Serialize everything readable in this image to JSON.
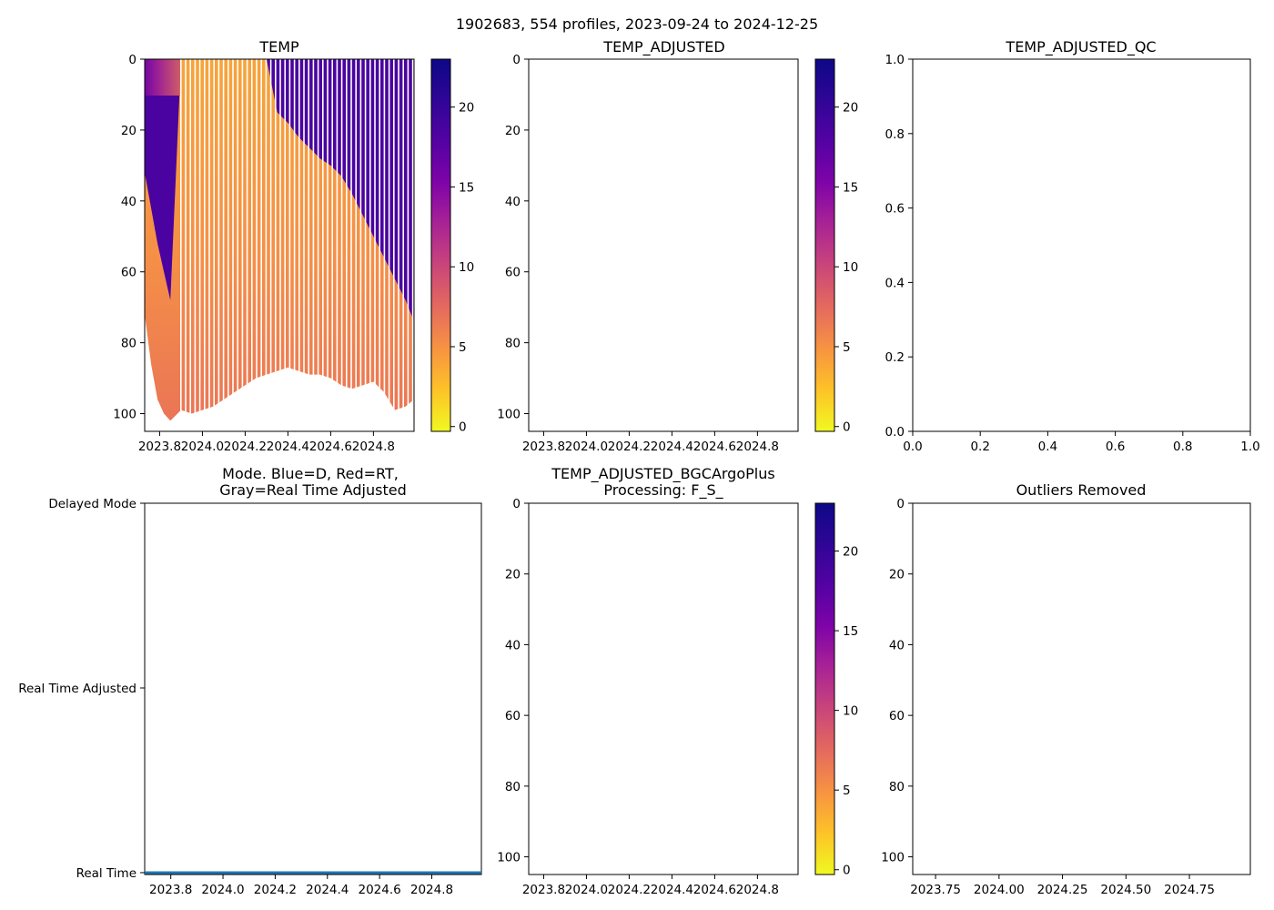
{
  "figure": {
    "suptitle": "1902683, 554 profiles, 2023-09-24 to 2024-12-25"
  },
  "chart_data": [
    {
      "id": "temp",
      "type": "heatmap",
      "title": "TEMP",
      "x_ticks": [
        "2023.8",
        "2024.0",
        "2024.2",
        "2024.4",
        "2024.6",
        "2024.8"
      ],
      "x_tick_values": [
        2023.8,
        2024.0,
        2024.2,
        2024.4,
        2024.6,
        2024.8
      ],
      "xlim": [
        2023.73,
        2024.99
      ],
      "y_ticks": [
        "0",
        "20",
        "40",
        "60",
        "80",
        "100"
      ],
      "y_tick_values": [
        0,
        20,
        40,
        60,
        80,
        100
      ],
      "ylim": [
        105,
        0
      ],
      "colorbar": {
        "cmap": "plasma_r",
        "range": [
          -0.3,
          23
        ],
        "ticks": [
          "0",
          "5",
          "10",
          "15",
          "20"
        ],
        "tick_values": [
          0,
          5,
          10,
          15,
          20
        ]
      },
      "bottom_depth_profile": {
        "x": [
          2023.73,
          2023.76,
          2023.79,
          2023.82,
          2023.85,
          2023.9,
          2023.95,
          2024.0,
          2024.05,
          2024.1,
          2024.15,
          2024.2,
          2024.25,
          2024.3,
          2024.35,
          2024.4,
          2024.45,
          2024.5,
          2024.55,
          2024.6,
          2024.65,
          2024.7,
          2024.75,
          2024.8,
          2024.85,
          2024.9,
          2024.95,
          2024.99
        ],
        "depth": [
          72,
          86,
          96,
          100,
          102,
          99,
          100,
          99,
          98,
          96,
          94,
          92,
          90,
          89,
          88,
          87,
          88,
          89,
          89,
          90,
          92,
          93,
          92,
          91,
          94,
          99,
          98,
          96
        ]
      },
      "mixed_layer_depth_profile": {
        "x": [
          2023.73,
          2023.76,
          2023.79,
          2023.82,
          2023.85,
          2023.9,
          2024.0,
          2024.1,
          2024.2,
          2024.3,
          2024.35,
          2024.4,
          2024.45,
          2024.5,
          2024.55,
          2024.6,
          2024.65,
          2024.7,
          2024.75,
          2024.8,
          2024.85,
          2024.9,
          2024.95,
          2024.99
        ],
        "depth": [
          32,
          42,
          52,
          60,
          68,
          100,
          100,
          100,
          100,
          100,
          15,
          18,
          22,
          25,
          28,
          30,
          33,
          38,
          44,
          50,
          56,
          62,
          68,
          74
        ]
      }
    },
    {
      "id": "temp-adjusted",
      "type": "heatmap",
      "title": "TEMP_ADJUSTED",
      "x_ticks": [
        "2023.8",
        "2024.0",
        "2024.2",
        "2024.4",
        "2024.6",
        "2024.8"
      ],
      "x_tick_values": [
        2023.8,
        2024.0,
        2024.2,
        2024.4,
        2024.6,
        2024.8
      ],
      "xlim": [
        2023.73,
        2024.99
      ],
      "y_ticks": [
        "0",
        "20",
        "40",
        "60",
        "80",
        "100"
      ],
      "y_tick_values": [
        0,
        20,
        40,
        60,
        80,
        100
      ],
      "ylim": [
        105,
        0
      ],
      "colorbar": {
        "cmap": "plasma_r",
        "range": [
          -0.3,
          23
        ],
        "ticks": [
          "0",
          "5",
          "10",
          "15",
          "20"
        ],
        "tick_values": [
          0,
          5,
          10,
          15,
          20
        ]
      }
    },
    {
      "id": "temp-adjusted-qc",
      "type": "scatter",
      "title": "TEMP_ADJUSTED_QC",
      "x_ticks": [
        "0.0",
        "0.2",
        "0.4",
        "0.6",
        "0.8",
        "1.0"
      ],
      "x_tick_values": [
        0,
        0.2,
        0.4,
        0.6,
        0.8,
        1.0
      ],
      "xlim": [
        0,
        1
      ],
      "y_ticks": [
        "0.0",
        "0.2",
        "0.4",
        "0.6",
        "0.8",
        "1.0"
      ],
      "y_tick_values": [
        0,
        0.2,
        0.4,
        0.6,
        0.8,
        1.0
      ],
      "ylim": [
        0,
        1
      ]
    },
    {
      "id": "mode",
      "type": "line",
      "title_lines": [
        "Mode. Blue=D, Red=RT,",
        "Gray=Real Time Adjusted"
      ],
      "x_ticks": [
        "2023.8",
        "2024.0",
        "2024.2",
        "2024.4",
        "2024.6",
        "2024.8"
      ],
      "x_tick_values": [
        2023.8,
        2024.0,
        2024.2,
        2024.4,
        2024.6,
        2024.8
      ],
      "xlim": [
        2023.7,
        2024.99
      ],
      "y_ticks": [
        "Delayed Mode",
        "Real Time Adjusted",
        "Real Time"
      ],
      "y_tick_values": [
        2,
        1,
        0
      ],
      "ylim": [
        -0.01,
        2
      ],
      "series": [
        {
          "name": "mode",
          "color": "#1f77b4",
          "x": [
            2023.7,
            2024.99
          ],
          "y": [
            0,
            0
          ]
        }
      ]
    },
    {
      "id": "bgc-argo-plus",
      "type": "heatmap",
      "title_lines": [
        "TEMP_ADJUSTED_BGCArgoPlus",
        "Processing: F_S_"
      ],
      "x_ticks": [
        "2023.8",
        "2024.0",
        "2024.2",
        "2024.4",
        "2024.6",
        "2024.8"
      ],
      "x_tick_values": [
        2023.8,
        2024.0,
        2024.2,
        2024.4,
        2024.6,
        2024.8
      ],
      "xlim": [
        2023.73,
        2024.99
      ],
      "y_ticks": [
        "0",
        "20",
        "40",
        "60",
        "80",
        "100"
      ],
      "y_tick_values": [
        0,
        20,
        40,
        60,
        80,
        100
      ],
      "ylim": [
        105,
        0
      ],
      "colorbar": {
        "cmap": "plasma_r",
        "range": [
          -0.3,
          23
        ],
        "ticks": [
          "0",
          "5",
          "10",
          "15",
          "20"
        ],
        "tick_values": [
          0,
          5,
          10,
          15,
          20
        ]
      }
    },
    {
      "id": "outliers-removed",
      "type": "scatter",
      "title": "Outliers Removed",
      "x_ticks": [
        "2023.75",
        "2024.00",
        "2024.25",
        "2024.50",
        "2024.75"
      ],
      "x_tick_values": [
        2023.75,
        2024.0,
        2024.25,
        2024.5,
        2024.75
      ],
      "xlim": [
        2023.66,
        2024.99
      ],
      "y_ticks": [
        "0",
        "20",
        "40",
        "60",
        "80",
        "100"
      ],
      "y_tick_values": [
        0,
        20,
        40,
        60,
        80,
        100
      ],
      "ylim": [
        105,
        0
      ]
    }
  ]
}
